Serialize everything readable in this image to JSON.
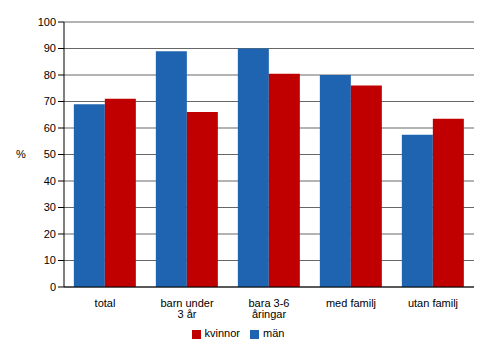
{
  "chart_data": {
    "type": "bar",
    "ylabel": "%",
    "categories": [
      "total",
      "barn under 3 år",
      "bara 3-6 åringar",
      "med familj",
      "utan familj"
    ],
    "series": [
      {
        "name": "män",
        "color": "#1f64b0",
        "values": [
          69,
          89,
          90,
          80,
          57.5
        ]
      },
      {
        "name": "kvinnor",
        "color": "#c00000",
        "values": [
          71,
          66,
          80.5,
          76,
          63.5
        ]
      }
    ],
    "ylim": [
      0,
      100
    ],
    "yticks": [
      0,
      10,
      20,
      30,
      40,
      50,
      60,
      70,
      80,
      90,
      100
    ],
    "grid": true,
    "legend": "bottom"
  }
}
